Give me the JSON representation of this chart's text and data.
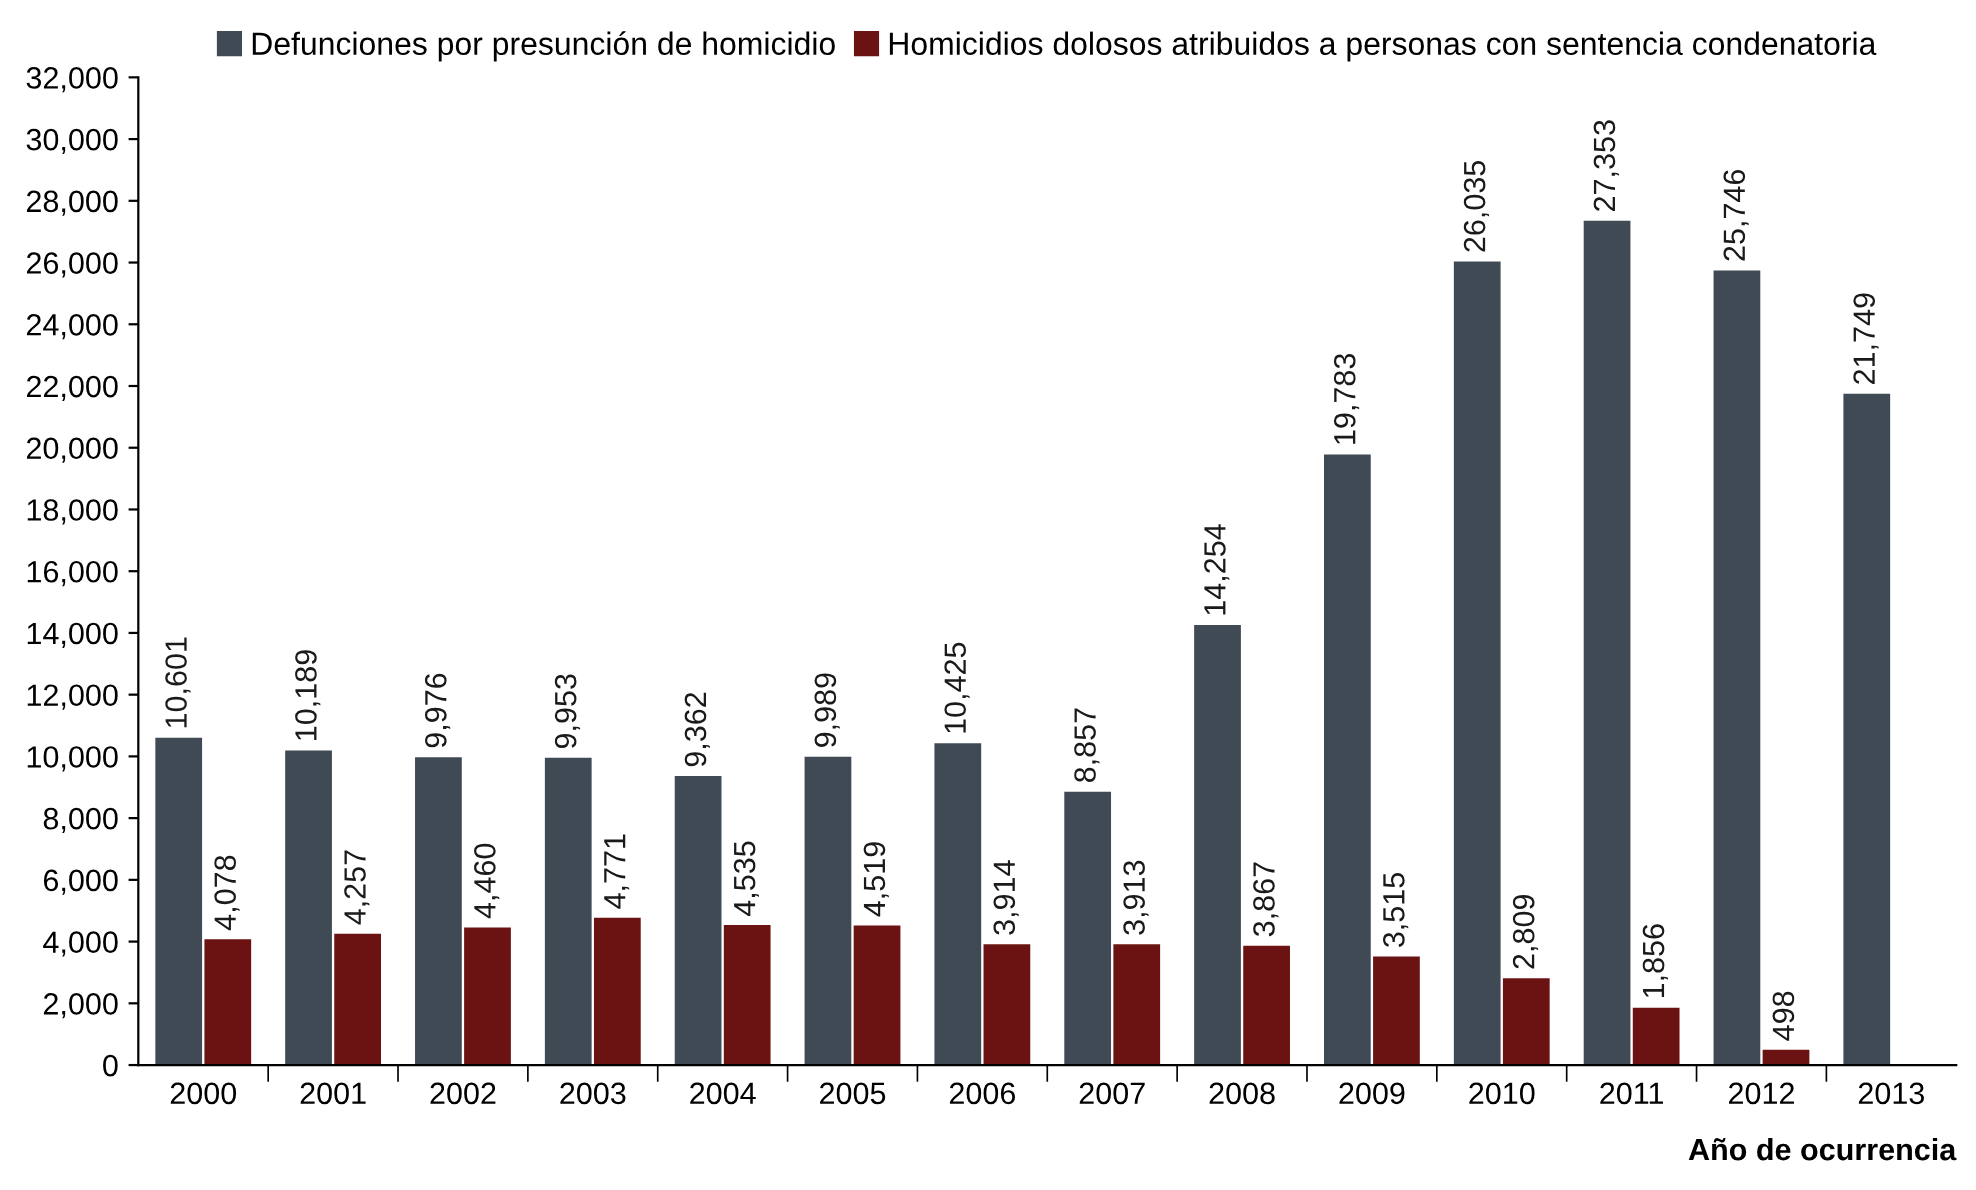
{
  "chart_data": {
    "type": "bar",
    "xlabel": "Año de ocurrencia",
    "categories": [
      "2000",
      "2001",
      "2002",
      "2003",
      "2004",
      "2005",
      "2006",
      "2007",
      "2008",
      "2009",
      "2010",
      "2011",
      "2012",
      "2013"
    ],
    "series": [
      {
        "name": "Defunciones por presunción de homicidio",
        "color": "#3f4a55",
        "values": [
          10601,
          10189,
          9976,
          9953,
          9362,
          9989,
          10425,
          8857,
          14254,
          19783,
          26035,
          27353,
          25746,
          21749
        ],
        "value_labels": [
          "10,601",
          "10,189",
          "9,976",
          "9,953",
          "9,362",
          "9,989",
          "10,425",
          "8,857",
          "14,254",
          "19,783",
          "26,035",
          "27,353",
          "25,746",
          "21,749"
        ]
      },
      {
        "name": "Homicidios dolosos atribuidos a personas con sentencia condenatoria",
        "color": "#6b1312",
        "values": [
          4078,
          4257,
          4460,
          4771,
          4535,
          4519,
          3914,
          3913,
          3867,
          3515,
          2809,
          1856,
          498,
          null
        ],
        "value_labels": [
          "4,078",
          "4,257",
          "4,460",
          "4,771",
          "4,535",
          "4,519",
          "3,914",
          "3,913",
          "3,867",
          "3,515",
          "2,809",
          "1,856",
          "498",
          null
        ]
      }
    ],
    "ylim": [
      0,
      32000
    ],
    "yticks": [
      0,
      {
        "value": 2000,
        "label": "2,000"
      },
      {
        "value": 4000,
        "label": "4,000"
      },
      {
        "value": 6000,
        "label": "6,000"
      },
      {
        "value": 8000,
        "label": "8,000"
      },
      {
        "value": 10000,
        "label": "10,000"
      },
      {
        "value": 12000,
        "label": "12,000"
      },
      {
        "value": 14000,
        "label": "14,000"
      },
      {
        "value": 16000,
        "label": "16,000"
      },
      {
        "value": 18000,
        "label": "18,000"
      },
      {
        "value": 20000,
        "label": "20,000"
      },
      {
        "value": 22000,
        "label": "22,000"
      },
      {
        "value": 24000,
        "label": "24,000"
      },
      {
        "value": 26000,
        "label": "26,000"
      },
      {
        "value": 28000,
        "label": "28,000"
      },
      {
        "value": 30000,
        "label": "30,000"
      },
      {
        "value": 32000,
        "label": "32,000"
      }
    ],
    "grid": false,
    "legend": "top"
  }
}
